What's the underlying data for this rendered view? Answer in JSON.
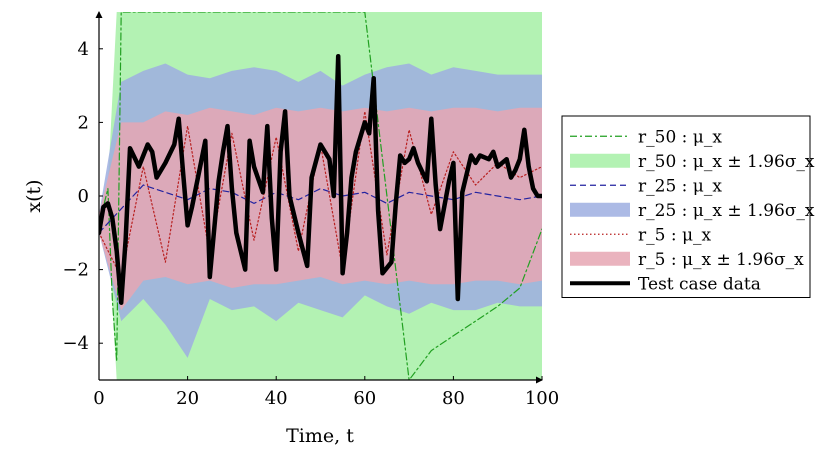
{
  "chart_data": {
    "type": "line",
    "title": "",
    "xlabel": "Time, t",
    "ylabel": "x(t)",
    "xlim": [
      0,
      100
    ],
    "ylim": [
      -5,
      5
    ],
    "xticks": [
      0,
      20,
      40,
      60,
      80,
      100
    ],
    "yticks": [
      -4,
      -2,
      0,
      2,
      4
    ],
    "grid": false,
    "legend_position": "right",
    "colors": {
      "green_line": "#22a022",
      "green_band": "#a6f0a6",
      "blue_line": "#2323a0",
      "blue_band": "#9eaee0",
      "red_line": "#b82020",
      "red_band": "#e6a6b3",
      "test_line": "#000000"
    },
    "series": [
      {
        "name": "r_50 : μ_x",
        "style": "dash-dot",
        "color": "#22a022",
        "x": [
          0,
          1,
          2,
          3,
          4,
          5,
          6,
          7,
          10,
          20,
          30,
          40,
          50,
          60,
          70,
          75,
          80,
          85,
          90,
          95,
          100
        ],
        "y": [
          -1.0,
          -0.3,
          0.2,
          -2.8,
          -4.5,
          5.0,
          5.0,
          5.0,
          5.0,
          5.0,
          5.0,
          5.0,
          5.0,
          5.0,
          -5.0,
          -4.2,
          -3.8,
          -3.4,
          -3.0,
          -2.5,
          -0.9
        ]
      },
      {
        "name": "r_50 : μ_x ± 1.96σ_x",
        "style": "band",
        "color": "#a6f0a6",
        "x": [
          0,
          2,
          4,
          5,
          100
        ],
        "lower": [
          -1.0,
          -0.8,
          -5.0,
          -5.0,
          -5.0
        ],
        "upper": [
          -0.5,
          0.3,
          5.0,
          5.0,
          5.0
        ]
      },
      {
        "name": "r_25 : μ_x",
        "style": "dashed",
        "color": "#2323a0",
        "x": [
          0,
          10,
          20,
          25,
          30,
          35,
          40,
          45,
          50,
          55,
          60,
          65,
          70,
          75,
          80,
          85,
          90,
          95,
          100
        ],
        "y": [
          -1.0,
          0.3,
          -0.1,
          0.2,
          0.1,
          -0.2,
          0.1,
          -0.1,
          0.2,
          0.0,
          0.1,
          -0.2,
          0.1,
          0.0,
          -0.1,
          0.1,
          0.0,
          -0.1,
          0.0
        ]
      },
      {
        "name": "r_25 : μ_x ± 1.96σ_x",
        "style": "band",
        "color": "#9eaee0",
        "x": [
          0,
          5,
          10,
          15,
          20,
          25,
          30,
          35,
          40,
          45,
          50,
          55,
          60,
          65,
          70,
          75,
          80,
          85,
          90,
          95,
          100
        ],
        "lower": [
          -1.0,
          -3.4,
          -2.8,
          -3.5,
          -4.4,
          -2.8,
          -3.1,
          -3.0,
          -3.4,
          -2.9,
          -3.1,
          -3.3,
          -2.7,
          -3.0,
          -3.2,
          -2.9,
          -3.1,
          -3.1,
          -2.9,
          -3.0,
          -3.0
        ],
        "upper": [
          -0.5,
          3.1,
          3.4,
          3.6,
          3.3,
          3.2,
          3.4,
          3.5,
          3.4,
          3.1,
          3.4,
          3.0,
          3.3,
          3.5,
          3.6,
          3.3,
          3.5,
          3.4,
          3.3,
          3.3,
          3.3
        ]
      },
      {
        "name": "r_5 : μ_x",
        "style": "dotted",
        "color": "#b82020",
        "x": [
          0,
          5,
          10,
          15,
          20,
          25,
          30,
          35,
          40,
          45,
          50,
          55,
          60,
          65,
          70,
          75,
          80,
          85,
          90,
          95,
          100
        ],
        "y": [
          -1.0,
          -2.2,
          0.8,
          -1.8,
          1.9,
          -1.6,
          1.7,
          -1.2,
          1.6,
          -1.5,
          1.4,
          -2.0,
          2.3,
          -1.6,
          1.8,
          -0.5,
          1.2,
          0.3,
          0.9,
          0.5,
          0.8
        ]
      },
      {
        "name": "r_5 : μ_x ± 1.96σ_x",
        "style": "band",
        "color": "#e6a6b3",
        "x": [
          0,
          5,
          10,
          15,
          20,
          25,
          30,
          35,
          40,
          45,
          50,
          55,
          60,
          65,
          70,
          75,
          80,
          85,
          90,
          95,
          100
        ],
        "lower": [
          -1.0,
          -3.1,
          -2.3,
          -2.2,
          -2.4,
          -2.3,
          -2.5,
          -2.4,
          -2.4,
          -2.3,
          -2.2,
          -2.4,
          -2.3,
          -2.4,
          -2.3,
          -2.4,
          -2.4,
          -2.3,
          -2.3,
          -2.4,
          -2.3
        ],
        "upper": [
          -0.5,
          2.0,
          2.0,
          2.3,
          2.2,
          2.4,
          2.3,
          2.2,
          2.4,
          2.3,
          2.4,
          2.3,
          2.4,
          2.3,
          2.4,
          2.3,
          2.4,
          2.4,
          2.3,
          2.4,
          2.4
        ]
      },
      {
        "name": "Test case data",
        "style": "solid-thick",
        "color": "#000000",
        "x": [
          0,
          1,
          2,
          3,
          4,
          5,
          6,
          7,
          9,
          11,
          12,
          13,
          15,
          17,
          18,
          19,
          20,
          21,
          23,
          24,
          25,
          27,
          28,
          29,
          30,
          31,
          33,
          34,
          35,
          37,
          38,
          39,
          40,
          41,
          42,
          43,
          45,
          47,
          48,
          50,
          52,
          53,
          54,
          55,
          56,
          57,
          58,
          60,
          61,
          62,
          63,
          64,
          66,
          67,
          68,
          69,
          70,
          71,
          72,
          74,
          75,
          76,
          77,
          79,
          80,
          81,
          82,
          84,
          85,
          86,
          88,
          89,
          90,
          92,
          93,
          94,
          95,
          96,
          97,
          98,
          99,
          100
        ],
        "y": [
          -1.0,
          -0.3,
          -0.2,
          -0.6,
          -1.5,
          -2.9,
          -1.2,
          1.3,
          0.8,
          1.4,
          1.2,
          0.5,
          0.9,
          1.4,
          2.1,
          0.6,
          -0.8,
          -0.3,
          0.9,
          1.5,
          -2.2,
          0.4,
          1.2,
          1.9,
          0.2,
          -1.0,
          -2.0,
          1.5,
          0.8,
          0.1,
          1.9,
          -0.6,
          -2.0,
          1.2,
          2.3,
          0.0,
          -1.0,
          -1.9,
          0.5,
          1.4,
          1.0,
          0.0,
          3.8,
          -2.1,
          -1.0,
          0.5,
          1.2,
          2.0,
          1.7,
          3.2,
          -0.4,
          -2.1,
          -1.8,
          -0.2,
          1.1,
          0.9,
          1.0,
          1.3,
          0.9,
          0.4,
          2.1,
          0.3,
          -0.9,
          0.4,
          0.9,
          -2.8,
          0.1,
          1.1,
          0.9,
          1.1,
          1.0,
          1.2,
          0.8,
          1.0,
          0.5,
          0.7,
          1.0,
          1.8,
          0.8,
          0.2,
          0.0,
          0.0
        ]
      }
    ]
  }
}
